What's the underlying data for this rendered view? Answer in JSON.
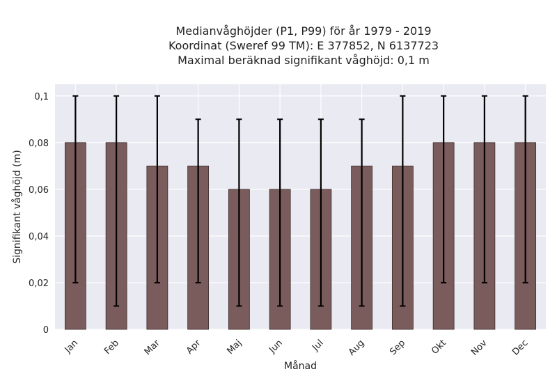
{
  "title_lines": [
    "Medianvåghöjder (P1, P99) för år 1979 - 2019",
    "Koordinat (Sweref 99 TM): E 377852, N 6137723",
    "Maximal beräknad signifikant våghöjd: 0,1 m"
  ],
  "chart_data": {
    "type": "bar",
    "title": "Medianvåghöjder (P1, P99) för år 1979 - 2019",
    "xlabel": "Månad",
    "ylabel": "Signifikant våghöjd (m)",
    "categories": [
      "Jan",
      "Feb",
      "Mar",
      "Apr",
      "Maj",
      "Jun",
      "Jul",
      "Aug",
      "Sep",
      "Okt",
      "Nov",
      "Dec"
    ],
    "values": [
      0.08,
      0.08,
      0.07,
      0.07,
      0.06,
      0.06,
      0.06,
      0.07,
      0.07,
      0.08,
      0.08,
      0.08
    ],
    "error_low": [
      0.02,
      0.01,
      0.02,
      0.02,
      0.01,
      0.01,
      0.01,
      0.01,
      0.01,
      0.02,
      0.02,
      0.02
    ],
    "error_high": [
      0.1,
      0.1,
      0.1,
      0.09,
      0.09,
      0.09,
      0.09,
      0.09,
      0.1,
      0.1,
      0.1,
      0.1
    ],
    "ylim": [
      0,
      0.105
    ],
    "yticks": [
      0,
      0.02,
      0.04,
      0.06,
      0.08,
      0.1
    ],
    "ytick_labels": [
      "0",
      "0,02",
      "0,04",
      "0,06",
      "0,08",
      "0,1"
    ],
    "grid": true,
    "colors": {
      "bar": "#7b5c5c",
      "bar_edge": "#3a2a2a",
      "plot_bg": "#eaeaf2",
      "grid": "#ffffff",
      "error": "#000000"
    }
  }
}
